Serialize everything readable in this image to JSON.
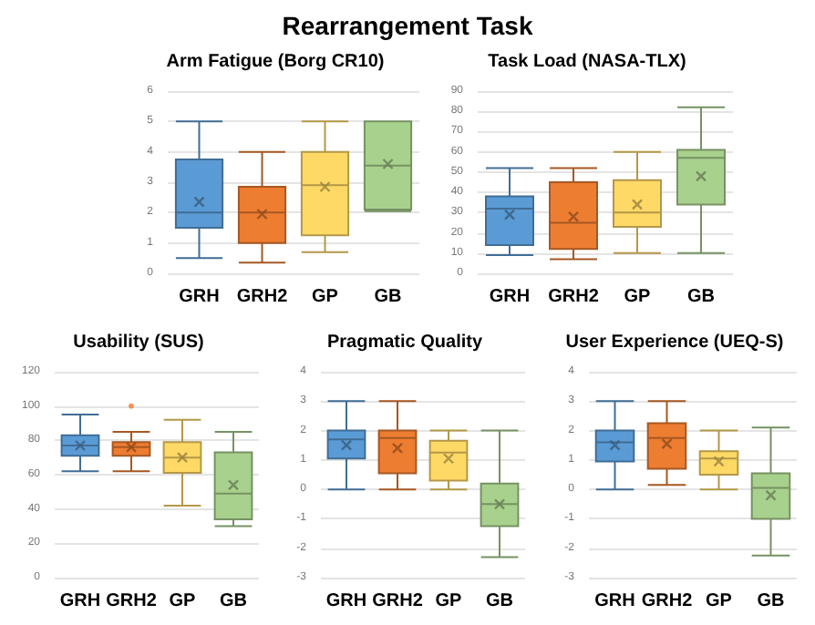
{
  "chart_data": [
    {
      "type": "other",
      "title": "Rearrangement Task"
    },
    {
      "type": "box",
      "title": "Arm Fatigue (Borg CR10)",
      "categories": [
        "GRH",
        "GRH2",
        "GP",
        "GB"
      ],
      "colors": [
        "#5b9bd5",
        "#ed7d31",
        "#ffd966",
        "#a9d18e"
      ],
      "ylim": [
        0,
        6
      ],
      "yticks": [
        0,
        1,
        2,
        3,
        4,
        5,
        6
      ],
      "grid": "y",
      "marker": "cross",
      "boxes": [
        {
          "low": 0.5,
          "q1": 1.5,
          "median": 2,
          "q3": 3.75,
          "high": 5,
          "mean": 2.35
        },
        {
          "low": 0.35,
          "q1": 1,
          "median": 2,
          "q3": 2.85,
          "high": 4,
          "mean": 1.95
        },
        {
          "low": 0.7,
          "q1": 1.25,
          "median": 2.9,
          "q3": 4,
          "high": 5,
          "mean": 2.85
        },
        {
          "low": 2.05,
          "q1": 2.1,
          "median": 3.55,
          "q3": 5,
          "high": 5,
          "mean": 3.6
        }
      ]
    },
    {
      "type": "box",
      "title": "Task Load (NASA-TLX)",
      "categories": [
        "GRH",
        "GRH2",
        "GP",
        "GB"
      ],
      "colors": [
        "#5b9bd5",
        "#ed7d31",
        "#ffd966",
        "#a9d18e"
      ],
      "ylim": [
        0,
        90
      ],
      "yticks": [
        0,
        10,
        20,
        30,
        40,
        50,
        60,
        70,
        80,
        90
      ],
      "grid": "y",
      "marker": "cross",
      "boxes": [
        {
          "low": 9,
          "q1": 14,
          "median": 32,
          "q3": 38,
          "high": 52,
          "mean": 29
        },
        {
          "low": 7,
          "q1": 12,
          "median": 25,
          "q3": 45,
          "high": 52,
          "mean": 28
        },
        {
          "low": 10,
          "q1": 23,
          "median": 30,
          "q3": 46,
          "high": 60,
          "mean": 34
        },
        {
          "low": 10,
          "q1": 34,
          "median": 57,
          "q3": 61,
          "high": 82,
          "mean": 48
        }
      ]
    },
    {
      "type": "box",
      "title": "Usability (SUS)",
      "categories": [
        "GRH",
        "GRH2",
        "GP",
        "GB"
      ],
      "colors": [
        "#5b9bd5",
        "#ed7d31",
        "#ffd966",
        "#a9d18e"
      ],
      "ylim": [
        0,
        120
      ],
      "yticks": [
        0,
        20,
        40,
        60,
        80,
        100,
        120
      ],
      "grid": "y",
      "marker": "cross",
      "boxes": [
        {
          "low": 62,
          "q1": 71,
          "median": 77,
          "q3": 83,
          "high": 95,
          "mean": 77
        },
        {
          "low": 62,
          "q1": 71,
          "median": 76,
          "q3": 79,
          "high": 85,
          "mean": 76,
          "outliers": [
            100
          ]
        },
        {
          "low": 42,
          "q1": 61,
          "median": 70,
          "q3": 79,
          "high": 92,
          "mean": 70
        },
        {
          "low": 30,
          "q1": 34,
          "median": 49,
          "q3": 73,
          "high": 85,
          "mean": 54
        }
      ]
    },
    {
      "type": "box",
      "title": "Pragmatic Quality",
      "categories": [
        "GRH",
        "GRH2",
        "GP",
        "GB"
      ],
      "colors": [
        "#5b9bd5",
        "#ed7d31",
        "#ffd966",
        "#a9d18e"
      ],
      "ylim": [
        -3,
        4
      ],
      "yticks": [
        -3,
        -2,
        -1,
        0,
        1,
        2,
        3,
        4
      ],
      "grid": "y",
      "marker": "cross",
      "boxes": [
        {
          "low": 0,
          "q1": 1.05,
          "median": 1.7,
          "q3": 2,
          "high": 3,
          "mean": 1.5
        },
        {
          "low": 0,
          "q1": 0.55,
          "median": 1.75,
          "q3": 2,
          "high": 3,
          "mean": 1.4
        },
        {
          "low": 0,
          "q1": 0.3,
          "median": 1.25,
          "q3": 1.65,
          "high": 2,
          "mean": 1.05
        },
        {
          "low": -2.3,
          "q1": -1.25,
          "median": -0.5,
          "q3": 0.2,
          "high": 2,
          "mean": -0.5
        }
      ]
    },
    {
      "type": "box",
      "title": "User Experience (UEQ-S)",
      "categories": [
        "GRH",
        "GRH2",
        "GP",
        "GB"
      ],
      "colors": [
        "#5b9bd5",
        "#ed7d31",
        "#ffd966",
        "#a9d18e"
      ],
      "ylim": [
        -3,
        4
      ],
      "yticks": [
        -3,
        -2,
        -1,
        0,
        1,
        2,
        3,
        4
      ],
      "grid": "y",
      "marker": "cross",
      "boxes": [
        {
          "low": 0,
          "q1": 0.95,
          "median": 1.6,
          "q3": 2,
          "high": 3,
          "mean": 1.5
        },
        {
          "low": 0.15,
          "q1": 0.7,
          "median": 1.75,
          "q3": 2.25,
          "high": 3,
          "mean": 1.55
        },
        {
          "low": 0,
          "q1": 0.5,
          "median": 1.05,
          "q3": 1.3,
          "high": 2,
          "mean": 0.95
        },
        {
          "low": -2.25,
          "q1": -1,
          "median": 0.05,
          "q3": 0.55,
          "high": 2.1,
          "mean": -0.2
        }
      ]
    }
  ]
}
